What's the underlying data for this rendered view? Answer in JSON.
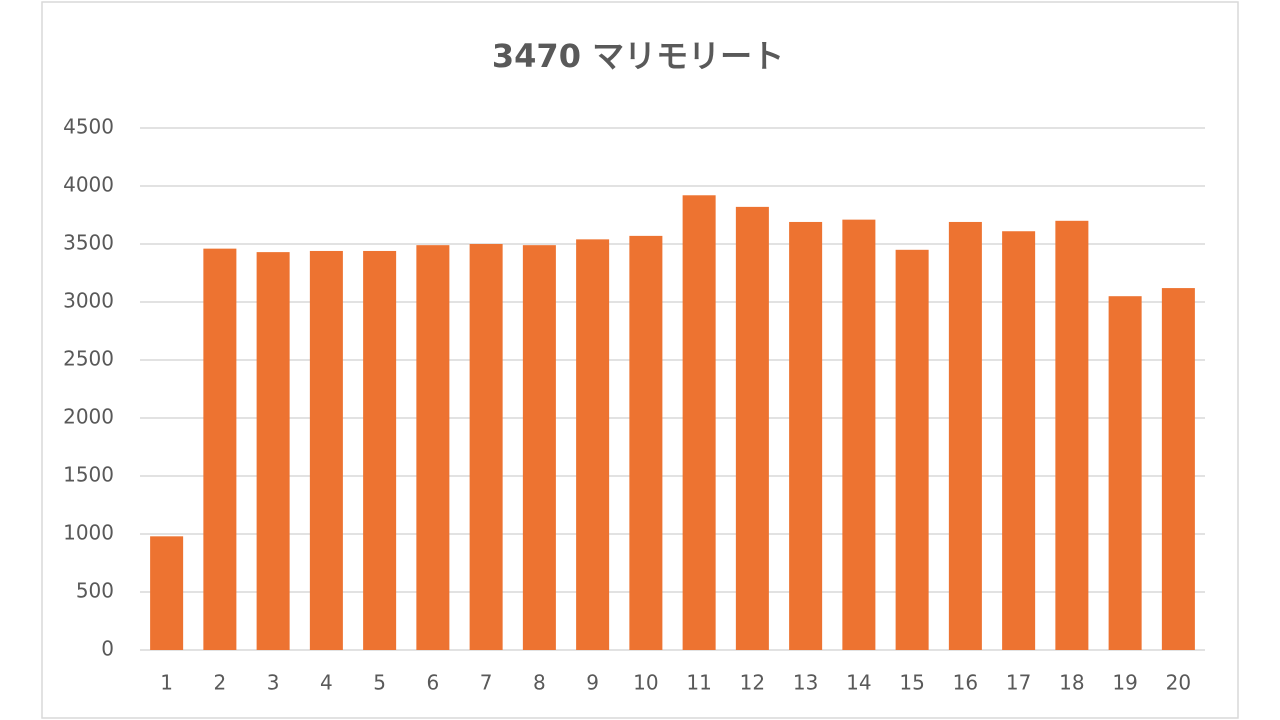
{
  "chart_data": {
    "type": "bar",
    "title": "3470 マリモリート",
    "categories": [
      "1",
      "2",
      "3",
      "4",
      "5",
      "6",
      "7",
      "8",
      "9",
      "10",
      "11",
      "12",
      "13",
      "14",
      "15",
      "16",
      "17",
      "18",
      "19",
      "20"
    ],
    "values": [
      980,
      3460,
      3430,
      3440,
      3440,
      3490,
      3500,
      3490,
      3540,
      3570,
      3920,
      3820,
      3690,
      3710,
      3450,
      3690,
      3610,
      3700,
      3050,
      3120
    ],
    "color": "#ed7331",
    "ylim": [
      0,
      4500
    ],
    "yticks": [
      0,
      500,
      1000,
      1500,
      2000,
      2500,
      3000,
      3500,
      4000,
      4500
    ],
    "grid": true
  }
}
